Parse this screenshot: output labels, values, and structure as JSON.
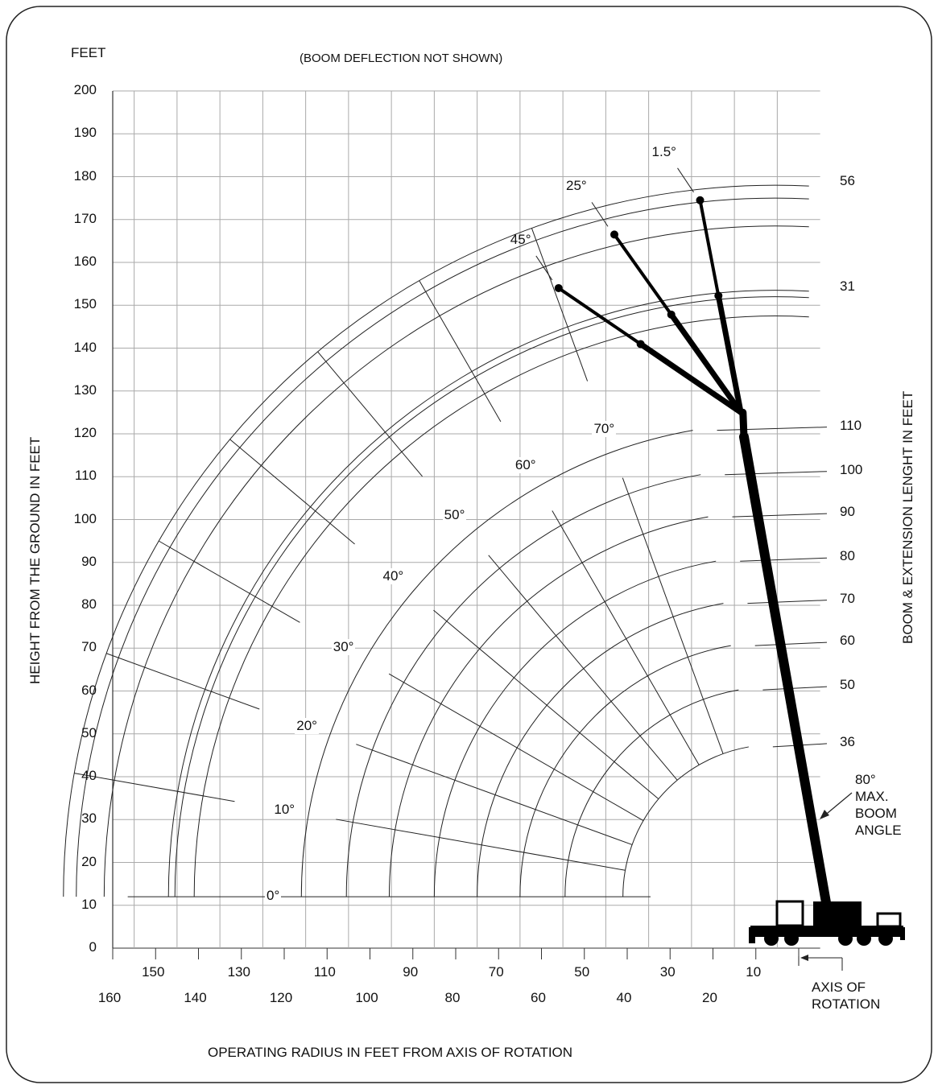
{
  "chart_data": {
    "type": "line",
    "title": "",
    "note": "(BOOM DEFLECTION NOT SHOWN)",
    "y_unit_label": "FEET",
    "ylabel": "HEIGHT FROM THE GROUND IN FEET",
    "xlabel": "OPERATING RADIUS IN FEET FROM AXIS OF ROTATION",
    "right_label": "BOOM & EXTENSION LENGHT IN FEET",
    "ylim": [
      0,
      200
    ],
    "xlim": [
      160,
      -5
    ],
    "y_ticks": [
      "0",
      "10",
      "20",
      "30",
      "40",
      "50",
      "60",
      "70",
      "80",
      "90",
      "100",
      "110",
      "120",
      "130",
      "140",
      "150",
      "160",
      "170",
      "180",
      "190",
      "200"
    ],
    "x_ticks_upper": [
      "150",
      "130",
      "110",
      "90",
      "70",
      "50",
      "30",
      "10"
    ],
    "x_ticks_lower": [
      "160",
      "140",
      "120",
      "100",
      "80",
      "60",
      "40",
      "20"
    ],
    "boom_pivot": {
      "x": 5.5,
      "y": 12
    },
    "boom_lengths": [
      {
        "label": "36",
        "r": 35.5
      },
      {
        "label": "50",
        "r": 49.0
      },
      {
        "label": "60",
        "r": 59.5
      },
      {
        "label": "70",
        "r": 69.5
      },
      {
        "label": "80",
        "r": 79.5
      },
      {
        "label": "90",
        "r": 90.0
      },
      {
        "label": "100",
        "r": 100.0
      },
      {
        "label": "110",
        "r": 110.5
      }
    ],
    "extension_arcs": [
      {
        "label": "",
        "r": 135.5
      },
      {
        "label": "",
        "r": 140.0
      },
      {
        "label": "31",
        "r": 141.5
      },
      {
        "label": "",
        "r": 156.5
      },
      {
        "label": "",
        "r": 163.0
      },
      {
        "label": "56",
        "r": 166.0
      }
    ],
    "boom_angles": [
      {
        "label": "0°",
        "angle": 0
      },
      {
        "label": "10°",
        "angle": 10
      },
      {
        "label": "20°",
        "angle": 20
      },
      {
        "label": "30°",
        "angle": 30
      },
      {
        "label": "40°",
        "angle": 40
      },
      {
        "label": "50°",
        "angle": 50
      },
      {
        "label": "60°",
        "angle": 60
      },
      {
        "label": "70°",
        "angle": 70
      }
    ],
    "extension_offsets": [
      {
        "label": "1.5°",
        "tip": {
          "x": 23,
          "y": 174.5
        }
      },
      {
        "label": "25°",
        "tip": {
          "x": 43,
          "y": 166.5
        }
      },
      {
        "label": "45°",
        "tip": {
          "x": 56,
          "y": 154
        }
      }
    ],
    "max_boom_angle": {
      "lines": [
        "80°",
        "MAX.",
        "BOOM",
        "ANGLE"
      ],
      "angle": 80
    },
    "axis_of_rotation": [
      "AXIS OF",
      "ROTATION"
    ]
  }
}
